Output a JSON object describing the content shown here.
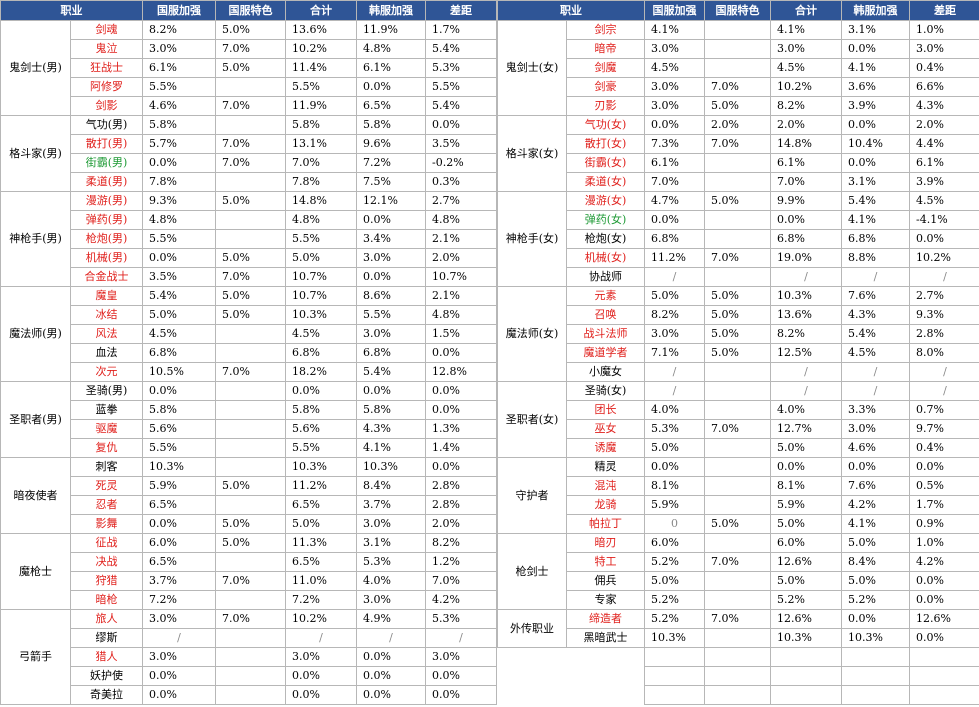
{
  "colors": {
    "header_bg": "#2f5596",
    "red": "#e0201c",
    "green": "#1e9a35"
  },
  "headers": [
    "职业",
    "国服加强",
    "国服特色",
    "合计",
    "韩服加强",
    "差距"
  ],
  "left": [
    {
      "group": "鬼剑士(男)",
      "rows": [
        {
          "name": "剑魂",
          "color": "red",
          "cn": "8.2%",
          "feat": "5.0%",
          "total": "13.6%",
          "kr": "11.9%",
          "diff": "1.7%"
        },
        {
          "name": "鬼泣",
          "color": "red",
          "cn": "3.0%",
          "feat": "7.0%",
          "total": "10.2%",
          "kr": "4.8%",
          "diff": "5.4%"
        },
        {
          "name": "狂战士",
          "color": "red",
          "cn": "6.1%",
          "feat": "5.0%",
          "total": "11.4%",
          "kr": "6.1%",
          "diff": "5.3%"
        },
        {
          "name": "阿修罗",
          "color": "red",
          "cn": "5.5%",
          "feat": "",
          "total": "5.5%",
          "kr": "0.0%",
          "diff": "5.5%"
        },
        {
          "name": "剑影",
          "color": "red",
          "cn": "4.6%",
          "feat": "7.0%",
          "total": "11.9%",
          "kr": "6.5%",
          "diff": "5.4%"
        }
      ]
    },
    {
      "group": "格斗家(男)",
      "rows": [
        {
          "name": "气功(男)",
          "color": "",
          "cn": "5.8%",
          "feat": "",
          "total": "5.8%",
          "kr": "5.8%",
          "diff": "0.0%"
        },
        {
          "name": "散打(男)",
          "color": "red",
          "cn": "5.7%",
          "feat": "7.0%",
          "total": "13.1%",
          "kr": "9.6%",
          "diff": "3.5%"
        },
        {
          "name": "街霸(男)",
          "color": "green",
          "cn": "0.0%",
          "feat": "7.0%",
          "total": "7.0%",
          "kr": "7.2%",
          "diff": "-0.2%"
        },
        {
          "name": "柔道(男)",
          "color": "red",
          "cn": "7.8%",
          "feat": "",
          "total": "7.8%",
          "kr": "7.5%",
          "diff": "0.3%"
        }
      ]
    },
    {
      "group": "神枪手(男)",
      "rows": [
        {
          "name": "漫游(男)",
          "color": "red",
          "cn": "9.3%",
          "feat": "5.0%",
          "total": "14.8%",
          "kr": "12.1%",
          "diff": "2.7%"
        },
        {
          "name": "弹药(男)",
          "color": "red",
          "cn": "4.8%",
          "feat": "",
          "total": "4.8%",
          "kr": "0.0%",
          "diff": "4.8%"
        },
        {
          "name": "枪炮(男)",
          "color": "red",
          "cn": "5.5%",
          "feat": "",
          "total": "5.5%",
          "kr": "3.4%",
          "diff": "2.1%"
        },
        {
          "name": "机械(男)",
          "color": "red",
          "cn": "0.0%",
          "feat": "5.0%",
          "total": "5.0%",
          "kr": "3.0%",
          "diff": "2.0%"
        },
        {
          "name": "合金战士",
          "color": "red",
          "cn": "3.5%",
          "feat": "7.0%",
          "total": "10.7%",
          "kr": "0.0%",
          "diff": "10.7%"
        }
      ]
    },
    {
      "group": "魔法师(男)",
      "rows": [
        {
          "name": "魔皇",
          "color": "red",
          "cn": "5.4%",
          "feat": "5.0%",
          "total": "10.7%",
          "kr": "8.6%",
          "diff": "2.1%"
        },
        {
          "name": "冰结",
          "color": "red",
          "cn": "5.0%",
          "feat": "5.0%",
          "total": "10.3%",
          "kr": "5.5%",
          "diff": "4.8%"
        },
        {
          "name": "风法",
          "color": "red",
          "cn": "4.5%",
          "feat": "",
          "total": "4.5%",
          "kr": "3.0%",
          "diff": "1.5%"
        },
        {
          "name": "血法",
          "color": "",
          "cn": "6.8%",
          "feat": "",
          "total": "6.8%",
          "kr": "6.8%",
          "diff": "0.0%"
        },
        {
          "name": "次元",
          "color": "red",
          "cn": "10.5%",
          "feat": "7.0%",
          "total": "18.2%",
          "kr": "5.4%",
          "diff": "12.8%"
        }
      ]
    },
    {
      "group": "圣职者(男)",
      "rows": [
        {
          "name": "圣骑(男)",
          "color": "",
          "cn": "0.0%",
          "feat": "",
          "total": "0.0%",
          "kr": "0.0%",
          "diff": "0.0%"
        },
        {
          "name": "蓝拳",
          "color": "",
          "cn": "5.8%",
          "feat": "",
          "total": "5.8%",
          "kr": "5.8%",
          "diff": "0.0%"
        },
        {
          "name": "驱魔",
          "color": "red",
          "cn": "5.6%",
          "feat": "",
          "total": "5.6%",
          "kr": "4.3%",
          "diff": "1.3%"
        },
        {
          "name": "复仇",
          "color": "red",
          "cn": "5.5%",
          "feat": "",
          "total": "5.5%",
          "kr": "4.1%",
          "diff": "1.4%"
        }
      ]
    },
    {
      "group": "暗夜使者",
      "rows": [
        {
          "name": "刺客",
          "color": "",
          "cn": "10.3%",
          "feat": "",
          "total": "10.3%",
          "kr": "10.3%",
          "diff": "0.0%"
        },
        {
          "name": "死灵",
          "color": "red",
          "cn": "5.9%",
          "feat": "5.0%",
          "total": "11.2%",
          "kr": "8.4%",
          "diff": "2.8%"
        },
        {
          "name": "忍者",
          "color": "red",
          "cn": "6.5%",
          "feat": "",
          "total": "6.5%",
          "kr": "3.7%",
          "diff": "2.8%"
        },
        {
          "name": "影舞",
          "color": "red",
          "cn": "0.0%",
          "feat": "5.0%",
          "total": "5.0%",
          "kr": "3.0%",
          "diff": "2.0%"
        }
      ]
    },
    {
      "group": "魔枪士",
      "rows": [
        {
          "name": "征战",
          "color": "red",
          "cn": "6.0%",
          "feat": "5.0%",
          "total": "11.3%",
          "kr": "3.1%",
          "diff": "8.2%"
        },
        {
          "name": "决战",
          "color": "red",
          "cn": "6.5%",
          "feat": "",
          "total": "6.5%",
          "kr": "5.3%",
          "diff": "1.2%"
        },
        {
          "name": "狩猎",
          "color": "red",
          "cn": "3.7%",
          "feat": "7.0%",
          "total": "11.0%",
          "kr": "4.0%",
          "diff": "7.0%"
        },
        {
          "name": "暗枪",
          "color": "red",
          "cn": "7.2%",
          "feat": "",
          "total": "7.2%",
          "kr": "3.0%",
          "diff": "4.2%"
        }
      ]
    },
    {
      "group": "弓箭手",
      "rows": [
        {
          "name": "旅人",
          "color": "red",
          "cn": "3.0%",
          "feat": "7.0%",
          "total": "10.2%",
          "kr": "4.9%",
          "diff": "5.3%"
        },
        {
          "name": "缪斯",
          "color": "",
          "cn": "/",
          "feat": "",
          "total": "/",
          "kr": "/",
          "diff": "/"
        },
        {
          "name": "猎人",
          "color": "red",
          "cn": "3.0%",
          "feat": "",
          "total": "3.0%",
          "kr": "0.0%",
          "diff": "3.0%"
        },
        {
          "name": "妖护使",
          "color": "",
          "cn": "0.0%",
          "feat": "",
          "total": "0.0%",
          "kr": "0.0%",
          "diff": "0.0%"
        },
        {
          "name": "奇美拉",
          "color": "",
          "cn": "0.0%",
          "feat": "",
          "total": "0.0%",
          "kr": "0.0%",
          "diff": "0.0%"
        }
      ]
    }
  ],
  "right": [
    {
      "group": "鬼剑士(女)",
      "rows": [
        {
          "name": "剑宗",
          "color": "red",
          "cn": "4.1%",
          "feat": "",
          "total": "4.1%",
          "kr": "3.1%",
          "diff": "1.0%"
        },
        {
          "name": "暗帝",
          "color": "red",
          "cn": "3.0%",
          "feat": "",
          "total": "3.0%",
          "kr": "0.0%",
          "diff": "3.0%"
        },
        {
          "name": "剑魔",
          "color": "red",
          "cn": "4.5%",
          "feat": "",
          "total": "4.5%",
          "kr": "4.1%",
          "diff": "0.4%"
        },
        {
          "name": "剑豪",
          "color": "red",
          "cn": "3.0%",
          "feat": "7.0%",
          "total": "10.2%",
          "kr": "3.6%",
          "diff": "6.6%"
        },
        {
          "name": "刃影",
          "color": "red",
          "cn": "3.0%",
          "feat": "5.0%",
          "total": "8.2%",
          "kr": "3.9%",
          "diff": "4.3%"
        }
      ]
    },
    {
      "group": "格斗家(女)",
      "rows": [
        {
          "name": "气功(女)",
          "color": "red",
          "cn": "0.0%",
          "feat": "2.0%",
          "total": "2.0%",
          "kr": "0.0%",
          "diff": "2.0%"
        },
        {
          "name": "散打(女)",
          "color": "red",
          "cn": "7.3%",
          "feat": "7.0%",
          "total": "14.8%",
          "kr": "10.4%",
          "diff": "4.4%"
        },
        {
          "name": "街霸(女)",
          "color": "red",
          "cn": "6.1%",
          "feat": "",
          "total": "6.1%",
          "kr": "0.0%",
          "diff": "6.1%"
        },
        {
          "name": "柔道(女)",
          "color": "red",
          "cn": "7.0%",
          "feat": "",
          "total": "7.0%",
          "kr": "3.1%",
          "diff": "3.9%"
        }
      ]
    },
    {
      "group": "神枪手(女)",
      "rows": [
        {
          "name": "漫游(女)",
          "color": "red",
          "cn": "4.7%",
          "feat": "5.0%",
          "total": "9.9%",
          "kr": "5.4%",
          "diff": "4.5%"
        },
        {
          "name": "弹药(女)",
          "color": "green",
          "cn": "0.0%",
          "feat": "",
          "total": "0.0%",
          "kr": "4.1%",
          "diff": "-4.1%"
        },
        {
          "name": "枪炮(女)",
          "color": "",
          "cn": "6.8%",
          "feat": "",
          "total": "6.8%",
          "kr": "6.8%",
          "diff": "0.0%"
        },
        {
          "name": "机械(女)",
          "color": "red",
          "cn": "11.2%",
          "feat": "7.0%",
          "total": "19.0%",
          "kr": "8.8%",
          "diff": "10.2%"
        },
        {
          "name": "协战师",
          "color": "",
          "cn": "/",
          "feat": "",
          "total": "/",
          "kr": "/",
          "diff": "/"
        }
      ]
    },
    {
      "group": "魔法师(女)",
      "rows": [
        {
          "name": "元素",
          "color": "red",
          "cn": "5.0%",
          "feat": "5.0%",
          "total": "10.3%",
          "kr": "7.6%",
          "diff": "2.7%"
        },
        {
          "name": "召唤",
          "color": "red",
          "cn": "8.2%",
          "feat": "5.0%",
          "total": "13.6%",
          "kr": "4.3%",
          "diff": "9.3%"
        },
        {
          "name": "战斗法师",
          "color": "red",
          "cn": "3.0%",
          "feat": "5.0%",
          "total": "8.2%",
          "kr": "5.4%",
          "diff": "2.8%"
        },
        {
          "name": "魔道学者",
          "color": "red",
          "cn": "7.1%",
          "feat": "5.0%",
          "total": "12.5%",
          "kr": "4.5%",
          "diff": "8.0%"
        },
        {
          "name": "小魔女",
          "color": "",
          "cn": "/",
          "feat": "",
          "total": "/",
          "kr": "/",
          "diff": "/"
        }
      ]
    },
    {
      "group": "圣职者(女)",
      "rows": [
        {
          "name": "圣骑(女)",
          "color": "",
          "cn": "/",
          "feat": "",
          "total": "/",
          "kr": "/",
          "diff": "/"
        },
        {
          "name": "团长",
          "color": "red",
          "cn": "4.0%",
          "feat": "",
          "total": "4.0%",
          "kr": "3.3%",
          "diff": "0.7%"
        },
        {
          "name": "巫女",
          "color": "red",
          "cn": "5.3%",
          "feat": "7.0%",
          "total": "12.7%",
          "kr": "3.0%",
          "diff": "9.7%"
        },
        {
          "name": "诱魔",
          "color": "red",
          "cn": "5.0%",
          "feat": "",
          "total": "5.0%",
          "kr": "4.6%",
          "diff": "0.4%"
        }
      ]
    },
    {
      "group": "守护者",
      "rows": [
        {
          "name": "精灵",
          "color": "",
          "cn": "0.0%",
          "feat": "",
          "total": "0.0%",
          "kr": "0.0%",
          "diff": "0.0%"
        },
        {
          "name": "混沌",
          "color": "red",
          "cn": "8.1%",
          "feat": "",
          "total": "8.1%",
          "kr": "7.6%",
          "diff": "0.5%"
        },
        {
          "name": "龙骑",
          "color": "red",
          "cn": "5.9%",
          "feat": "",
          "total": "5.9%",
          "kr": "4.2%",
          "diff": "1.7%"
        },
        {
          "name": "帕拉丁",
          "color": "red",
          "cn": "0",
          "feat": "5.0%",
          "total": "5.0%",
          "kr": "4.1%",
          "diff": "0.9%"
        }
      ]
    },
    {
      "group": "枪剑士",
      "rows": [
        {
          "name": "暗刃",
          "color": "red",
          "cn": "6.0%",
          "feat": "",
          "total": "6.0%",
          "kr": "5.0%",
          "diff": "1.0%"
        },
        {
          "name": "特工",
          "color": "red",
          "cn": "5.2%",
          "feat": "7.0%",
          "total": "12.6%",
          "kr": "8.4%",
          "diff": "4.2%"
        },
        {
          "name": "佣兵",
          "color": "",
          "cn": "5.0%",
          "feat": "",
          "total": "5.0%",
          "kr": "5.0%",
          "diff": "0.0%"
        },
        {
          "name": "专家",
          "color": "",
          "cn": "5.2%",
          "feat": "",
          "total": "5.2%",
          "kr": "5.2%",
          "diff": "0.0%"
        }
      ]
    },
    {
      "group": "外传职业",
      "rows": [
        {
          "name": "缔造者",
          "color": "red",
          "cn": "5.2%",
          "feat": "7.0%",
          "total": "12.6%",
          "kr": "0.0%",
          "diff": "12.6%"
        },
        {
          "name": "黑暗武士",
          "color": "",
          "cn": "10.3%",
          "feat": "",
          "total": "10.3%",
          "kr": "10.3%",
          "diff": "0.0%"
        }
      ]
    }
  ]
}
